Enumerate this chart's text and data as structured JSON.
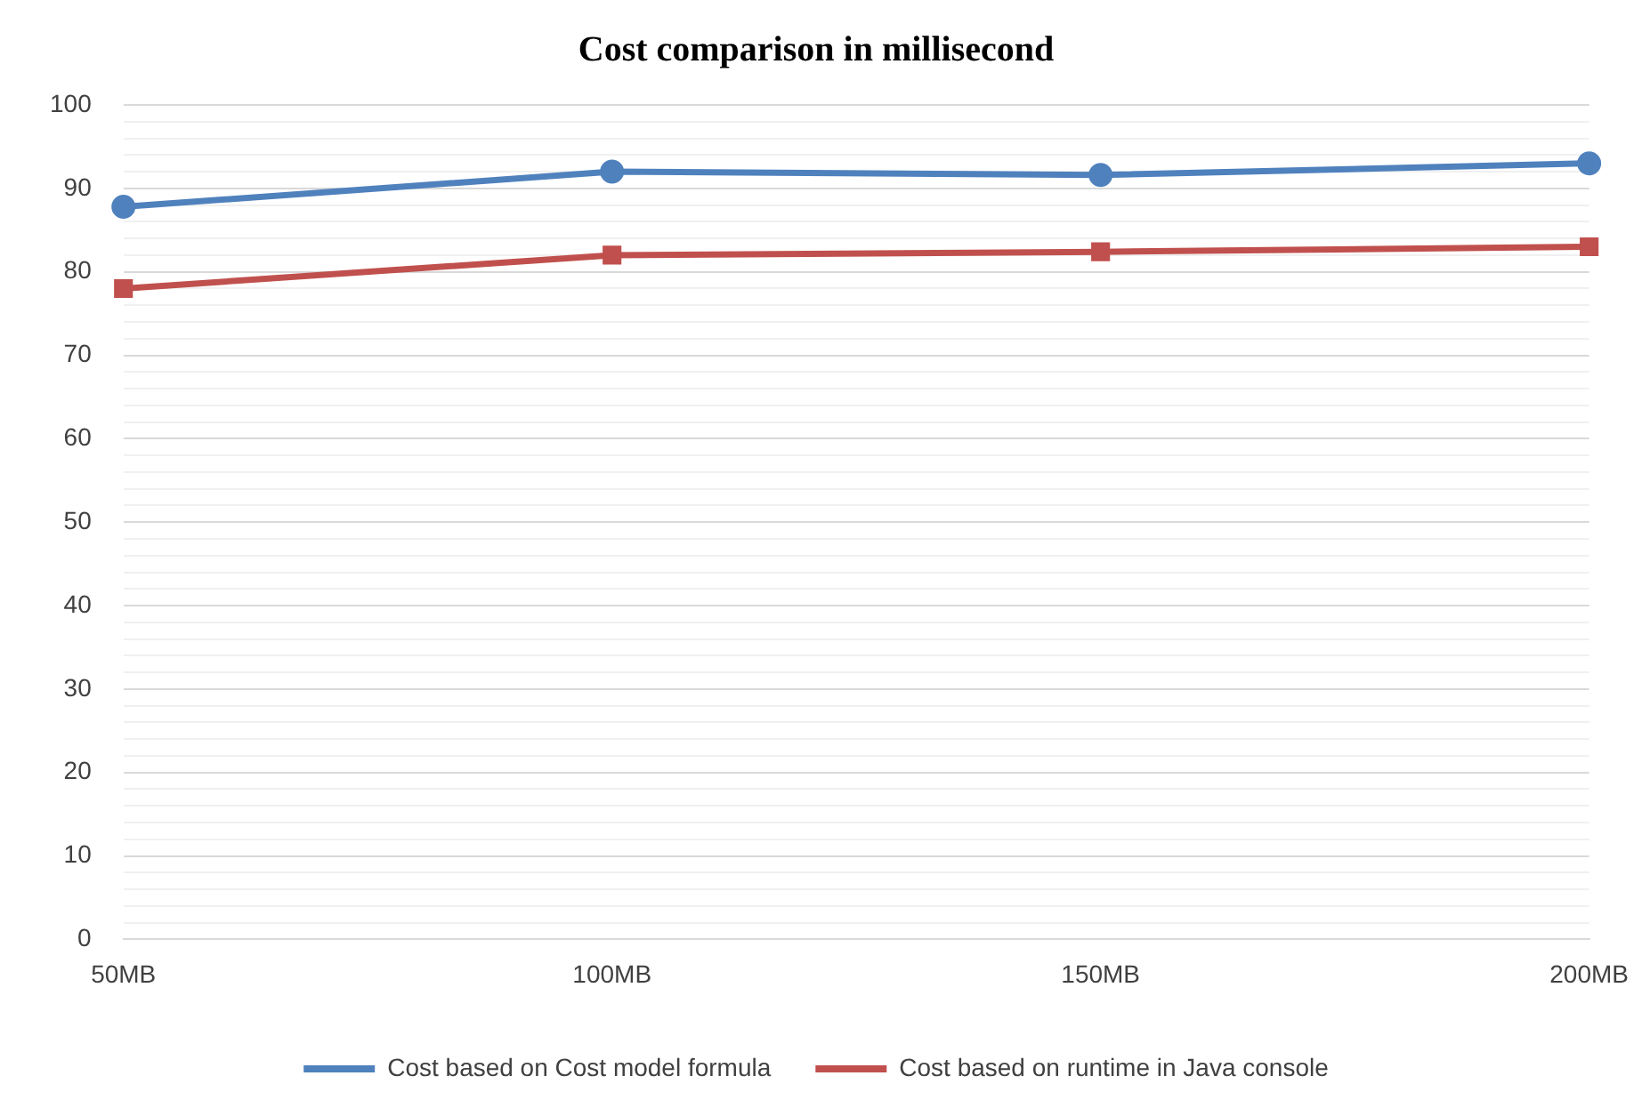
{
  "chart_data": {
    "type": "line",
    "title": "Cost comparison in millisecond",
    "categories": [
      "50MB",
      "100MB",
      "150MB",
      "200MB"
    ],
    "series": [
      {
        "name": "Cost based on Cost model formula",
        "color": "#4f81bd",
        "marker": "circle",
        "values": [
          87.8,
          92,
          91.6,
          93
        ]
      },
      {
        "name": "Cost based on runtime in Java console",
        "color": "#c0504d",
        "marker": "square",
        "values": [
          78,
          82,
          82.4,
          83
        ]
      }
    ],
    "ylim": [
      0,
      100
    ],
    "yticks": [
      0,
      {
        "value": 2,
        "label": null
      },
      {
        "value": 4,
        "label": null
      },
      {
        "value": 6,
        "label": null
      },
      {
        "value": 8,
        "label": null
      },
      10,
      {
        "value": 12,
        "label": null
      },
      {
        "value": 14,
        "label": null
      },
      {
        "value": 16,
        "label": null
      },
      {
        "value": 18,
        "label": null
      },
      20,
      {
        "value": 22,
        "label": null
      },
      {
        "value": 24,
        "label": null
      },
      {
        "value": 26,
        "label": null
      },
      {
        "value": 28,
        "label": null
      },
      30,
      {
        "value": 32,
        "label": null
      },
      {
        "value": 34,
        "label": null
      },
      {
        "value": 36,
        "label": null
      },
      {
        "value": 38,
        "label": null
      },
      40,
      {
        "value": 42,
        "label": null
      },
      {
        "value": 44,
        "label": null
      },
      {
        "value": 46,
        "label": null
      },
      {
        "value": 48,
        "label": null
      },
      50,
      {
        "value": 52,
        "label": null
      },
      {
        "value": 54,
        "label": null
      },
      {
        "value": 56,
        "label": null
      },
      {
        "value": 58,
        "label": null
      },
      60,
      {
        "value": 62,
        "label": null
      },
      {
        "value": 64,
        "label": null
      },
      {
        "value": 66,
        "label": null
      },
      {
        "value": 68,
        "label": null
      },
      70,
      {
        "value": 72,
        "label": null
      },
      {
        "value": 74,
        "label": null
      },
      {
        "value": 76,
        "label": null
      },
      {
        "value": 78,
        "label": null
      },
      80,
      {
        "value": 82,
        "label": null
      },
      {
        "value": 84,
        "label": null
      },
      {
        "value": 86,
        "label": null
      },
      {
        "value": 88,
        "label": null
      },
      90,
      {
        "value": 92,
        "label": null
      },
      {
        "value": 94,
        "label": null
      },
      {
        "value": 96,
        "label": null
      },
      {
        "value": 98,
        "label": null
      },
      100
    ],
    "grid": "y",
    "legend": "bottom",
    "line_style": "solid"
  }
}
